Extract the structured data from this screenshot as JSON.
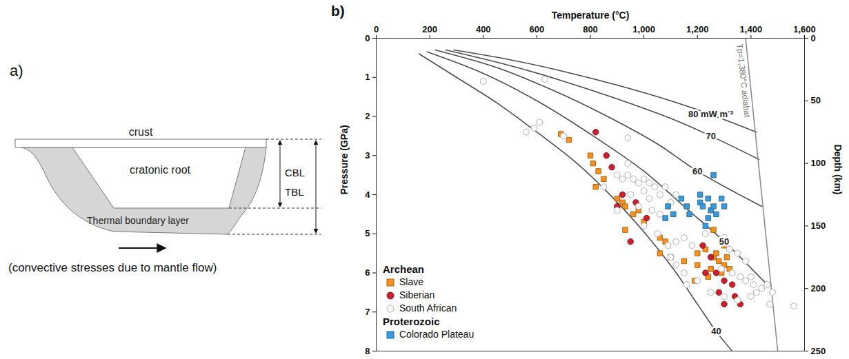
{
  "diagram": {
    "label": "a)",
    "layers": {
      "crust": "crust",
      "root": "cratonic root",
      "boundary": "Thermal boundary layer"
    },
    "dimensions": [
      "CBL",
      "TBL"
    ],
    "caption": "(convective stresses due to mantle flow)"
  },
  "chart_data": {
    "type": "scatter",
    "panel_label": "b)",
    "x_label": "Temperature (°C)",
    "y_label": "Pressure (GPa)",
    "y2_label": "Depth (km)",
    "xlim": [
      0,
      1600
    ],
    "xticks": [
      0,
      200,
      400,
      600,
      800,
      {
        "value": 1000,
        "label": "1,000"
      },
      {
        "value": 1200,
        "label": "1,200"
      },
      {
        "value": 1400,
        "label": "1,400"
      },
      {
        "value": 1600,
        "label": "1,600"
      }
    ],
    "ylim": [
      0,
      8
    ],
    "yticks": [
      0,
      1,
      2,
      3,
      4,
      5,
      6,
      7,
      8
    ],
    "y2lim": [
      0,
      250
    ],
    "y2ticks": [
      0,
      50,
      100,
      150,
      200,
      250
    ],
    "legend": "lower left",
    "series": [
      {
        "name": "80 mW m⁻²",
        "type": "line",
        "color": "#4d4d4d",
        "line_style": "solid",
        "x": [
          290,
          500,
          700,
          900,
          1100,
          1250,
          1420
        ],
        "y": [
          0.3,
          0.55,
          0.85,
          1.2,
          1.6,
          1.95,
          2.4
        ]
      },
      {
        "name": "70",
        "type": "line",
        "color": "#4d4d4d",
        "line_style": "solid",
        "x": [
          260,
          500,
          700,
          900,
          1100,
          1250,
          1430
        ],
        "y": [
          0.3,
          0.7,
          1.1,
          1.55,
          2.05,
          2.5,
          3.1
        ]
      },
      {
        "name": "60",
        "type": "line",
        "color": "#4d4d4d",
        "line_style": "solid",
        "x": [
          220,
          450,
          650,
          850,
          1050,
          1200,
          1440
        ],
        "y": [
          0.3,
          0.75,
          1.3,
          1.95,
          2.7,
          3.4,
          4.3
        ]
      },
      {
        "name": "50",
        "type": "line",
        "color": "#4d4d4d",
        "line_style": "solid",
        "x": [
          190,
          400,
          600,
          800,
          1000,
          1150,
          1300,
          1460
        ],
        "y": [
          0.35,
          0.9,
          1.6,
          2.45,
          3.4,
          4.3,
          5.2,
          6.3
        ]
      },
      {
        "name": "40",
        "type": "line",
        "color": "#4d4d4d",
        "line_style": "solid",
        "x": [
          160,
          300,
          450,
          600,
          750,
          880,
          1000,
          1110,
          1200,
          1270,
          1330
        ],
        "y": [
          0.4,
          1.0,
          1.65,
          2.4,
          3.2,
          4.05,
          4.95,
          5.9,
          6.8,
          7.5,
          8
        ]
      },
      {
        "name": "Tp=1,380°C adiabat",
        "type": "line",
        "color": "#8c8c8c",
        "line_style": "solid",
        "x": [
          1380,
          1500
        ],
        "y": [
          0,
          8
        ]
      },
      {
        "name": "Slave",
        "group": "Archean",
        "type": "scatter",
        "marker": "square",
        "color": "#f5911e",
        "x": [
          690,
          720,
          800,
          810,
          830,
          850,
          820,
          900,
          920,
          930,
          960,
          1000,
          980,
          930,
          1060,
          1080,
          1060,
          1100,
          1150,
          1200,
          1230,
          1260,
          1280,
          1300,
          1250,
          1290,
          1310,
          1240,
          1190,
          1260,
          1300,
          1270,
          1320,
          1200
        ],
        "y": [
          2.45,
          2.6,
          3.0,
          3.2,
          3.4,
          3.6,
          3.8,
          4.1,
          4.2,
          4.3,
          4.5,
          4.7,
          4.4,
          4.9,
          5.1,
          5.2,
          5.5,
          5.6,
          5.7,
          5.5,
          5.4,
          5.6,
          5.7,
          5.8,
          5.9,
          6.0,
          5.6,
          6.1,
          6.2,
          4.9,
          5.3,
          5.5,
          5.9,
          5.8
        ]
      },
      {
        "name": "Siberian",
        "group": "Archean",
        "type": "scatter",
        "marker": "circle",
        "color": "#c8202f",
        "x": [
          820,
          860,
          880,
          920,
          900,
          970,
          1010,
          950,
          1220,
          1250,
          1270,
          1300,
          1330,
          1340,
          1280,
          1300,
          1360,
          1230
        ],
        "y": [
          2.4,
          3.0,
          3.3,
          4.0,
          4.3,
          4.2,
          4.6,
          5.2,
          5.3,
          5.6,
          6.0,
          6.2,
          6.3,
          6.6,
          6.5,
          6.8,
          6.8,
          6.0
        ]
      },
      {
        "name": "South African",
        "group": "Archean",
        "type": "scatter",
        "marker": "hexagon",
        "color": "#ffffff",
        "x": [
          400,
          630,
          560,
          590,
          610,
          700,
          940,
          900,
          920,
          940,
          960,
          980,
          1000,
          1020,
          1000,
          1040,
          1060,
          1080,
          1020,
          950,
          980,
          1030,
          1060,
          1100,
          1120,
          1000,
          1050,
          1090,
          1120,
          1150,
          1180,
          1230,
          1300,
          1320,
          1350,
          1380,
          1290,
          1330,
          1360,
          1380,
          1400,
          1410,
          1420,
          1440,
          1460,
          1480,
          1470,
          1560,
          1150,
          1160,
          1120,
          1250,
          1300,
          1350,
          1400,
          940,
          850,
          900,
          1100,
          1200
        ],
        "y": [
          1.1,
          1.05,
          2.4,
          2.3,
          2.15,
          2.5,
          2.55,
          3.5,
          3.6,
          3.5,
          3.6,
          3.7,
          3.6,
          3.7,
          3.9,
          3.8,
          4.0,
          3.8,
          4.1,
          4.0,
          4.3,
          4.4,
          4.5,
          4.2,
          4.0,
          4.8,
          5.0,
          5.3,
          5.2,
          5.1,
          5.3,
          5.0,
          5.1,
          5.4,
          5.5,
          5.7,
          5.9,
          6.0,
          6.1,
          6.2,
          6.1,
          6.3,
          6.5,
          6.4,
          6.3,
          6.5,
          6.8,
          6.85,
          6.0,
          6.3,
          5.8,
          6.5,
          6.6,
          6.7,
          6.6,
          3.2,
          3.8,
          4.4,
          5.6,
          6.2
        ]
      },
      {
        "name": "Colorado Plateau",
        "group": "Proterozoic",
        "type": "scatter",
        "marker": "square",
        "color": "#3a9ad9",
        "x": [
          1260,
          1090,
          1140,
          1160,
          1170,
          1210,
          1210,
          1220,
          1240,
          1250,
          1240,
          1230,
          1260,
          1300,
          1290,
          1080,
          1110,
          1270
        ],
        "y": [
          3.5,
          4.3,
          4.1,
          4.3,
          4.5,
          4.0,
          4.2,
          4.3,
          4.1,
          4.4,
          4.6,
          4.8,
          4.3,
          4.3,
          4.1,
          4.6,
          4.5,
          4.5
        ]
      }
    ]
  }
}
